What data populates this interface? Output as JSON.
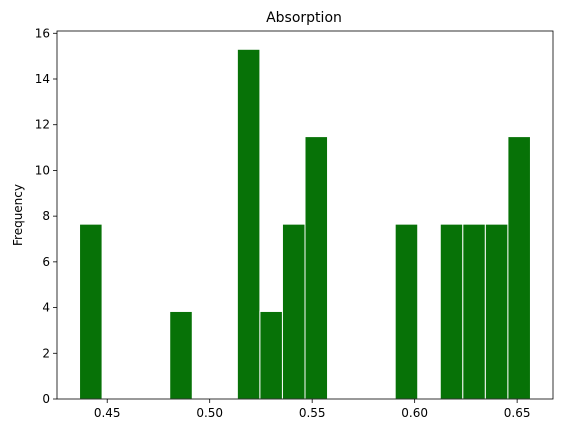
{
  "chart_data": {
    "type": "bar",
    "title": "Absorption",
    "xlabel": "",
    "ylabel": "Frequency",
    "bin_edges": [
      0.4365,
      0.4475,
      0.4585,
      0.4695,
      0.4805,
      0.4915,
      0.5025,
      0.5135,
      0.5245,
      0.5355,
      0.5465,
      0.5575,
      0.5685,
      0.5795,
      0.5905,
      0.6015,
      0.6125,
      0.6235,
      0.6345,
      0.6455,
      0.6565
    ],
    "values": [
      7.65,
      0,
      0,
      0,
      3.83,
      0,
      0,
      15.3,
      3.83,
      7.65,
      11.48,
      0,
      0,
      0,
      7.65,
      0,
      7.65,
      7.65,
      7.65,
      11.48
    ],
    "xlim": [
      0.4255,
      0.6675
    ],
    "ylim": [
      0,
      16.1
    ],
    "x_ticks": [
      0.45,
      0.5,
      0.55,
      0.6,
      0.65
    ],
    "x_tick_labels": [
      "0.45",
      "0.50",
      "0.55",
      "0.60",
      "0.65"
    ],
    "y_ticks": [
      0,
      2,
      4,
      6,
      8,
      10,
      12,
      14,
      16
    ],
    "y_tick_labels": [
      "0",
      "2",
      "4",
      "6",
      "8",
      "10",
      "12",
      "14",
      "16"
    ],
    "bar_color": "#077207",
    "edge_color": "#ffffff",
    "grid": false,
    "legend": "none"
  }
}
